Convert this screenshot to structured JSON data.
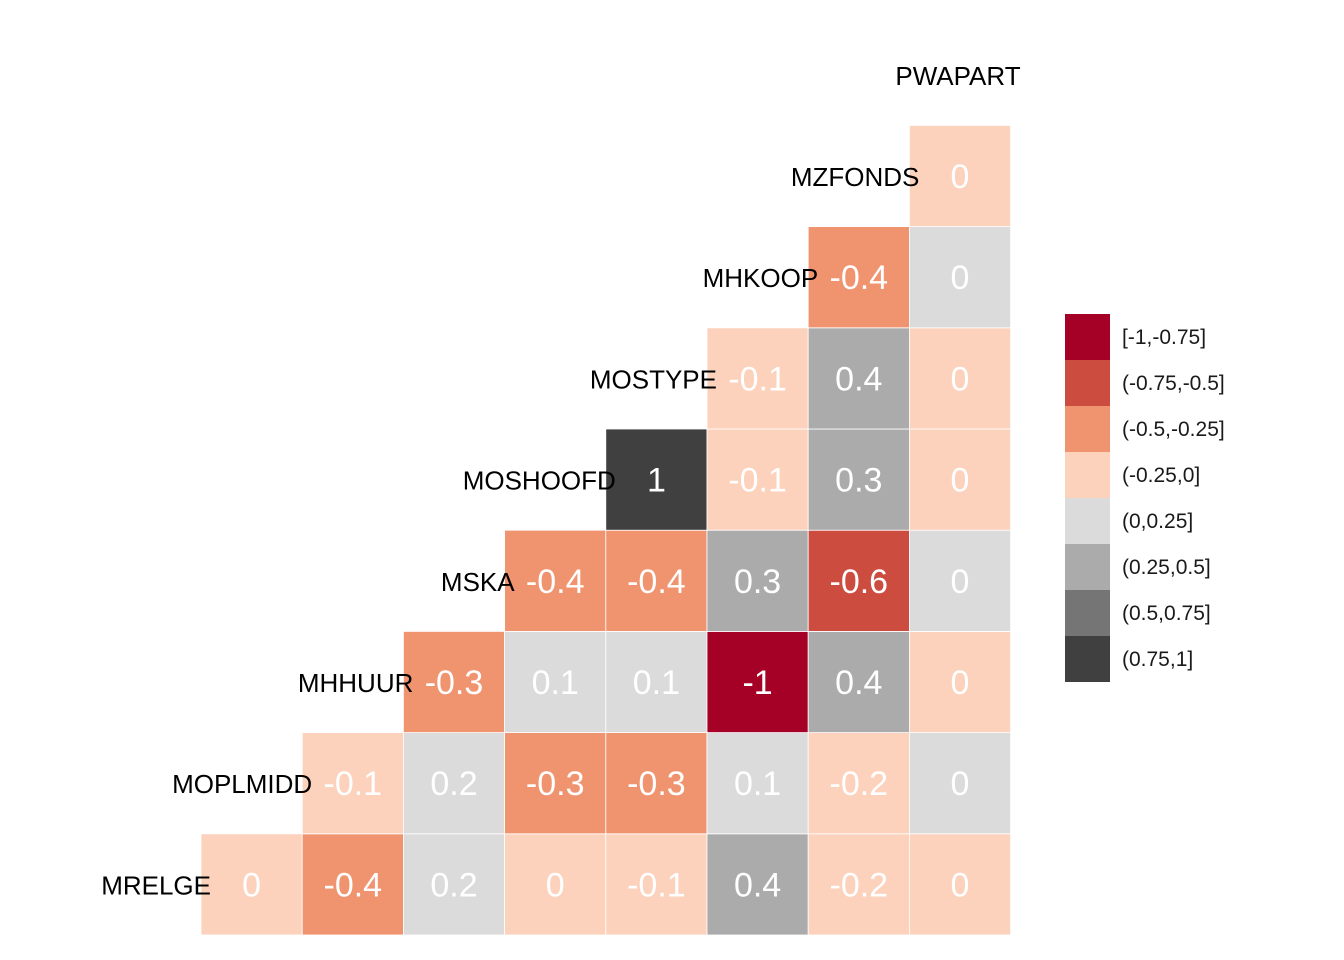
{
  "chart_data": {
    "type": "heatmap",
    "variables": [
      "MRELGE",
      "MOPLMIDD",
      "MHHUUR",
      "MSKA",
      "MOSHOOFD",
      "MOSTYPE",
      "MHKOOP",
      "MZFONDS",
      "PWAPART"
    ],
    "variable_labels": [
      {
        "name": "MRELGE",
        "text": "MRELGE"
      },
      {
        "name": "MOPLMIDD",
        "text": "MOPLMIDD"
      },
      {
        "name": "MHHUUR",
        "text": "MHHUUR"
      },
      {
        "name": "MSKA",
        "text": "MSKA"
      },
      {
        "name": "MOSHOOFD",
        "text": "MOSHOOFD"
      },
      {
        "name": "MOSTYPE",
        "text": "MOSTYPE"
      },
      {
        "name": "MHKOOP",
        "text": "MHKOOP"
      },
      {
        "name": "MZFONDS",
        "text": "MZFONDS"
      },
      {
        "name": "PWAPART",
        "text": "PWAPART"
      }
    ],
    "cells": [
      {
        "row": "MRELGE",
        "col": "MRELGE",
        "value": 0,
        "label": "0"
      },
      {
        "row": "MRELGE",
        "col": "MOPLMIDD",
        "value": -0.4,
        "label": "-0.4"
      },
      {
        "row": "MRELGE",
        "col": "MHHUUR",
        "value": 0.2,
        "label": "0.2"
      },
      {
        "row": "MRELGE",
        "col": "MSKA",
        "value": -0.001,
        "label": "0"
      },
      {
        "row": "MRELGE",
        "col": "MOSHOOFD",
        "value": -0.1,
        "label": "-0.1"
      },
      {
        "row": "MRELGE",
        "col": "MOSTYPE",
        "value": 0.4,
        "label": "0.4"
      },
      {
        "row": "MRELGE",
        "col": "MHKOOP",
        "value": -0.2,
        "label": "-0.2"
      },
      {
        "row": "MRELGE",
        "col": "MZFONDS",
        "value": -0.001,
        "label": "0"
      },
      {
        "row": "MOPLMIDD",
        "col": "MOPLMIDD",
        "value": -0.1,
        "label": "-0.1"
      },
      {
        "row": "MOPLMIDD",
        "col": "MHHUUR",
        "value": 0.2,
        "label": "0.2"
      },
      {
        "row": "MOPLMIDD",
        "col": "MSKA",
        "value": -0.3,
        "label": "-0.3"
      },
      {
        "row": "MOPLMIDD",
        "col": "MOSHOOFD",
        "value": -0.3,
        "label": "-0.3"
      },
      {
        "row": "MOPLMIDD",
        "col": "MOSTYPE",
        "value": 0.1,
        "label": "0.1"
      },
      {
        "row": "MOPLMIDD",
        "col": "MHKOOP",
        "value": -0.2,
        "label": "-0.2"
      },
      {
        "row": "MOPLMIDD",
        "col": "MZFONDS",
        "value": 0.001,
        "label": "0"
      },
      {
        "row": "MHHUUR",
        "col": "MHHUUR",
        "value": -0.3,
        "label": "-0.3"
      },
      {
        "row": "MHHUUR",
        "col": "MSKA",
        "value": 0.1,
        "label": "0.1"
      },
      {
        "row": "MHHUUR",
        "col": "MOSHOOFD",
        "value": 0.1,
        "label": "0.1"
      },
      {
        "row": "MHHUUR",
        "col": "MOSTYPE",
        "value": -1,
        "label": "-1"
      },
      {
        "row": "MHHUUR",
        "col": "MHKOOP",
        "value": 0.4,
        "label": "0.4"
      },
      {
        "row": "MHHUUR",
        "col": "MZFONDS",
        "value": -0.001,
        "label": "0"
      },
      {
        "row": "MSKA",
        "col": "MSKA",
        "value": -0.4,
        "label": "-0.4"
      },
      {
        "row": "MSKA",
        "col": "MOSHOOFD",
        "value": -0.4,
        "label": "-0.4"
      },
      {
        "row": "MSKA",
        "col": "MOSTYPE",
        "value": 0.3,
        "label": "0.3"
      },
      {
        "row": "MSKA",
        "col": "MHKOOP",
        "value": -0.6,
        "label": "-0.6"
      },
      {
        "row": "MSKA",
        "col": "MZFONDS",
        "value": 0.001,
        "label": "0"
      },
      {
        "row": "MOSHOOFD",
        "col": "MOSHOOFD",
        "value": 1,
        "label": "1"
      },
      {
        "row": "MOSHOOFD",
        "col": "MOSTYPE",
        "value": -0.1,
        "label": "-0.1"
      },
      {
        "row": "MOSHOOFD",
        "col": "MHKOOP",
        "value": 0.3,
        "label": "0.3"
      },
      {
        "row": "MOSHOOFD",
        "col": "MZFONDS",
        "value": -0.001,
        "label": "0"
      },
      {
        "row": "MOSTYPE",
        "col": "MOSTYPE",
        "value": -0.1,
        "label": "-0.1"
      },
      {
        "row": "MOSTYPE",
        "col": "MHKOOP",
        "value": 0.4,
        "label": "0.4"
      },
      {
        "row": "MOSTYPE",
        "col": "MZFONDS",
        "value": -0.001,
        "label": "0"
      },
      {
        "row": "MHKOOP",
        "col": "MHKOOP",
        "value": -0.4,
        "label": "-0.4"
      },
      {
        "row": "MHKOOP",
        "col": "MZFONDS",
        "value": 0.001,
        "label": "0"
      },
      {
        "row": "MZFONDS",
        "col": "MZFONDS",
        "value": -0.001,
        "label": "0"
      }
    ],
    "legend": {
      "placement": "right",
      "entries": [
        {
          "label": "[-1,-0.75]",
          "color": "#A50026"
        },
        {
          "label": "(-0.75,-0.5]",
          "color": "#CC4C40"
        },
        {
          "label": "(-0.5,-0.25]",
          "color": "#F09470"
        },
        {
          "label": "(-0.25,0]",
          "color": "#FCD2BC"
        },
        {
          "label": "(0,0.25]",
          "color": "#DBDBDB"
        },
        {
          "label": "(0.25,0.5]",
          "color": "#ABABAB"
        },
        {
          "label": "(0.5,0.75]",
          "color": "#757575"
        },
        {
          "label": "(0.75,1]",
          "color": "#404040"
        }
      ]
    },
    "grid": false
  }
}
